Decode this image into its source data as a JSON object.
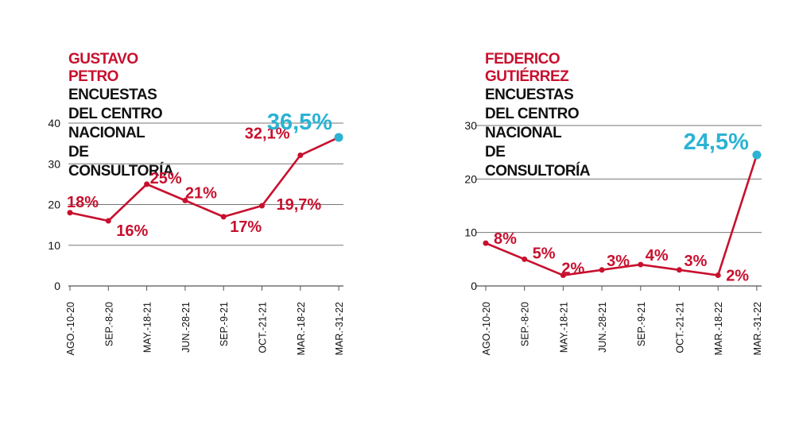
{
  "colors": {
    "line": "#c8102e",
    "highlight": "#2bb3d3",
    "grid": "#777777",
    "text": "#111111"
  },
  "chart_data": [
    {
      "type": "line",
      "candidate": "GUSTAVO PETRO",
      "title_line1": "ENCUESTAS DEL CENTRO NACIONAL",
      "title_line2": "DE CONSULTORÍA",
      "categories": [
        "AGO.-10-20",
        "SEP.-8-20",
        "MAY.-18-21",
        "JUN.-28-21",
        "SEP.-9-21",
        "OCT.-21-21",
        "MAR.-18-22",
        "MAR.-31-22"
      ],
      "values": [
        18,
        16,
        25,
        21,
        17,
        19.7,
        32.1,
        36.5
      ],
      "labels": [
        "18%",
        "16%",
        "25%",
        "21%",
        "17%",
        "19,7%",
        "32,1%",
        "36,5%"
      ],
      "yticks": [
        0,
        10,
        20,
        30,
        40
      ],
      "ylim": [
        0,
        40
      ]
    },
    {
      "type": "line",
      "candidate": "FEDERICO GUTIÉRREZ",
      "title_line1": "ENCUESTAS DEL CENTRO NACIONAL",
      "title_line2": "DE CONSULTORÍA",
      "categories": [
        "AGO.-10-20",
        "SEP.-8-20",
        "MAY.-18-21",
        "JUN.-28-21",
        "SEP.-9-21",
        "OCT.-21-21",
        "MAR.-18-22",
        "MAR.-31-22"
      ],
      "values": [
        8,
        5,
        2,
        3,
        4,
        3,
        2,
        24.5
      ],
      "labels": [
        "8%",
        "5%",
        "2%",
        "3%",
        "4%",
        "3%",
        "2%",
        "24,5%"
      ],
      "yticks": [
        0,
        10,
        20,
        30
      ],
      "ylim": [
        0,
        30
      ]
    }
  ]
}
